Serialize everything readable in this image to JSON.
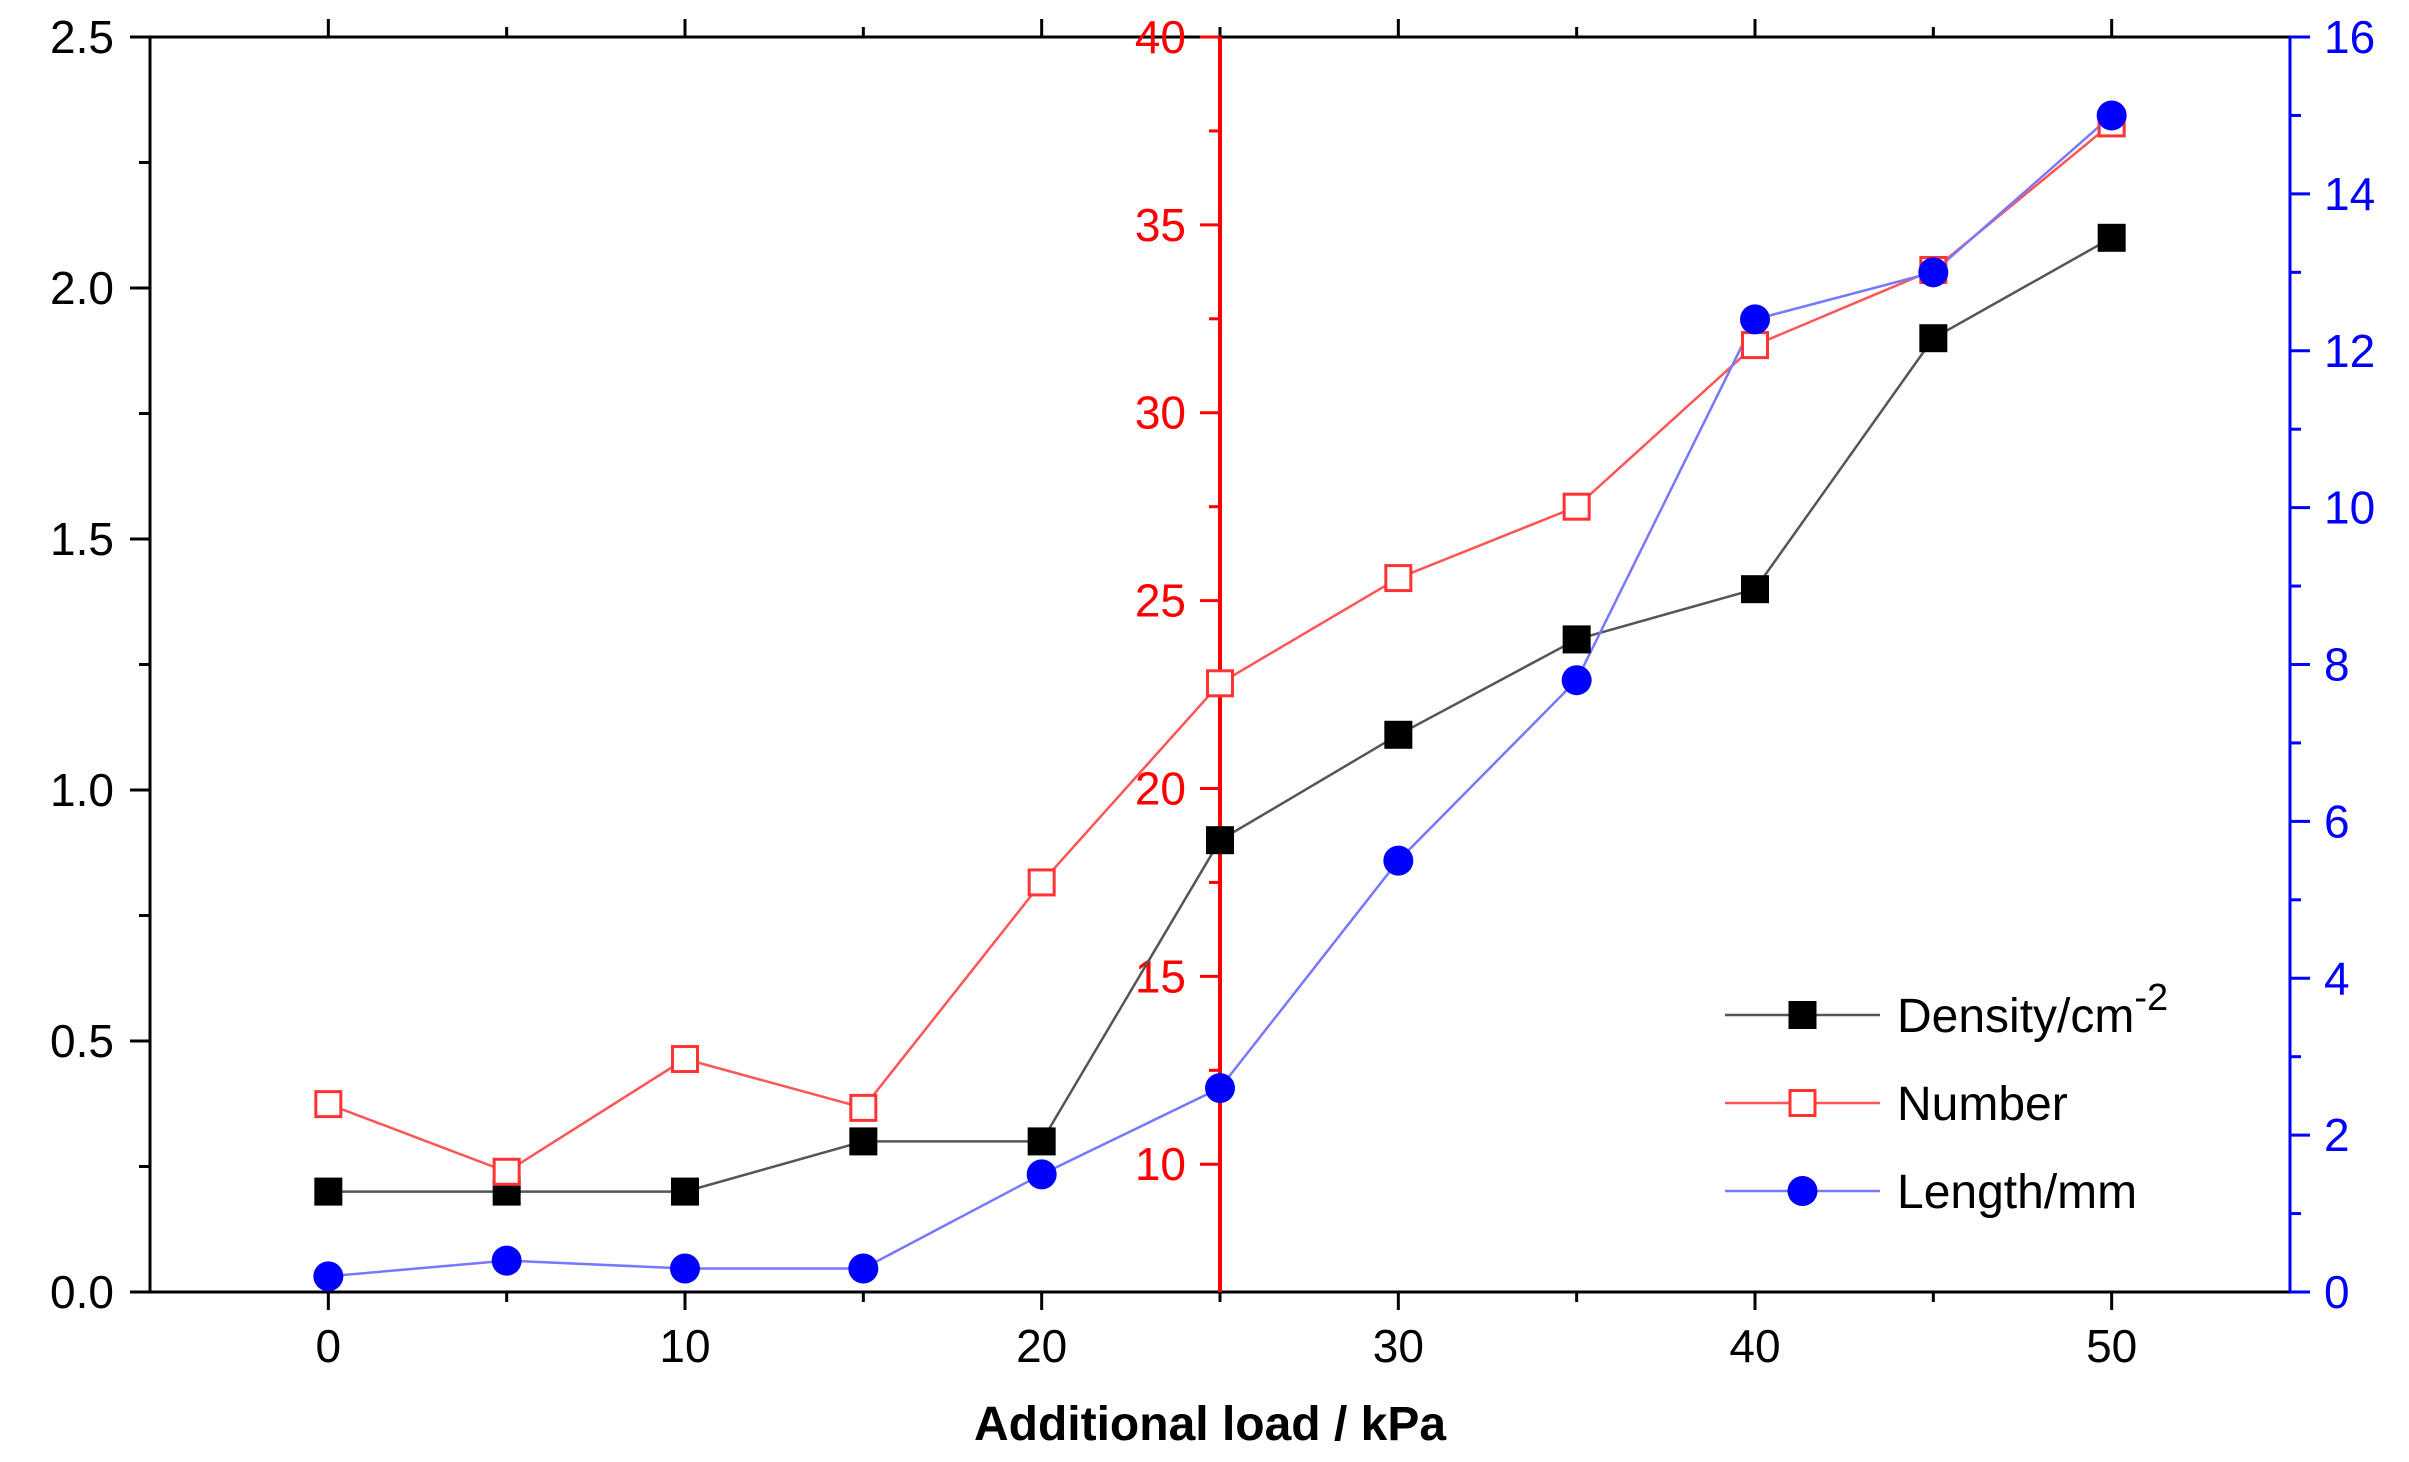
{
  "chart_data": {
    "type": "line",
    "title": "",
    "xlabel": "Additional load / kPa",
    "x_ticks": [
      0,
      10,
      20,
      30,
      40,
      50
    ],
    "xlim": [
      -5,
      55
    ],
    "x": [
      0,
      5,
      10,
      15,
      20,
      25,
      30,
      35,
      40,
      45,
      50
    ],
    "axes": {
      "left": {
        "ylim": [
          0,
          2.5
        ],
        "ticks": [
          "0.0",
          "0.5",
          "1.0",
          "1.5",
          "2.0",
          "2.5"
        ],
        "color": "#000000"
      },
      "middle": {
        "ylim": [
          6.6,
          40
        ],
        "ticks": [
          "10",
          "15",
          "20",
          "25",
          "30",
          "35",
          "40"
        ],
        "color": "#ff0000",
        "at_x": 25
      },
      "right": {
        "ylim": [
          0,
          16
        ],
        "ticks": [
          "0",
          "2",
          "4",
          "6",
          "8",
          "10",
          "12",
          "14",
          "16"
        ],
        "color": "#0000ff"
      }
    },
    "series": [
      {
        "name": "Density/cm",
        "name_superscript": "-2",
        "axis": "left",
        "marker": "filled-square",
        "line_color": "#555555",
        "marker_color": "#000000",
        "values": [
          0.2,
          0.2,
          0.2,
          0.3,
          0.3,
          0.9,
          1.11,
          1.3,
          1.4,
          1.9,
          2.1
        ]
      },
      {
        "name": "Number",
        "axis": "middle",
        "marker": "open-square",
        "line_color": "#ff5555",
        "marker_color": "#ff3333",
        "values": [
          11.6,
          9.8,
          12.8,
          11.5,
          17.5,
          22.8,
          25.6,
          27.5,
          31.8,
          33.8,
          37.7
        ]
      },
      {
        "name": "Length/mm",
        "axis": "right",
        "marker": "filled-circle",
        "line_color": "#7777ff",
        "marker_color": "#0000ff",
        "values": [
          0.2,
          0.4,
          0.3,
          0.3,
          1.5,
          2.6,
          5.5,
          7.8,
          12.4,
          13.0,
          15.0
        ]
      }
    ],
    "legend_position": "bottom-right",
    "grid": false
  }
}
